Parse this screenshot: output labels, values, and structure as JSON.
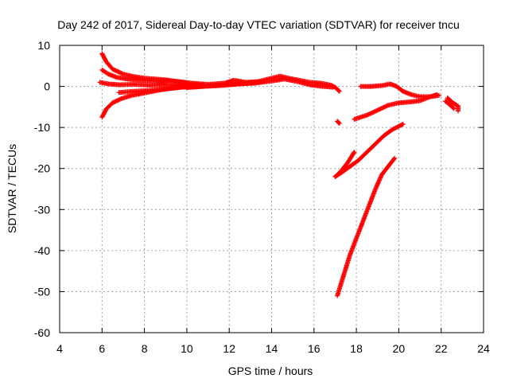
{
  "chart_data": {
    "type": "scatter",
    "title": "Day 242 of 2017, Sidereal Day-to-day VTEC variation (SDTVAR) for receiver tncu",
    "xlabel": "GPS time / hours",
    "ylabel": "SDTVAR / TECUs",
    "xlim": [
      4,
      24
    ],
    "ylim": [
      -60,
      10
    ],
    "xticks": [
      4,
      6,
      8,
      10,
      12,
      14,
      16,
      18,
      20,
      22,
      24
    ],
    "yticks": [
      10,
      0,
      -10,
      -20,
      -30,
      -40,
      -50,
      -60
    ],
    "xtick_labels": [
      "4",
      "6",
      "8",
      "10",
      "12",
      "14",
      "16",
      "18",
      "20",
      "22",
      "24"
    ],
    "ytick_labels": [
      "10",
      "0",
      "-10",
      "-20",
      "-30",
      "-40",
      "-50",
      "-60"
    ],
    "grid": true,
    "marker": "plus",
    "color": "#ff0000",
    "series": [
      {
        "values": [
          [
            6.0,
            8.0
          ],
          [
            6.2,
            6.0
          ],
          [
            6.5,
            4.2
          ],
          [
            7.0,
            3.0
          ],
          [
            7.5,
            2.4
          ],
          [
            8.0,
            2.0
          ],
          [
            8.5,
            1.8
          ],
          [
            9.0,
            1.6
          ],
          [
            9.5,
            1.2
          ],
          [
            10.0,
            0.8
          ]
        ]
      },
      {
        "values": [
          [
            6.0,
            4.0
          ],
          [
            6.3,
            3.0
          ],
          [
            6.7,
            2.2
          ],
          [
            7.2,
            1.8
          ],
          [
            7.8,
            1.5
          ],
          [
            8.5,
            1.3
          ],
          [
            9.0,
            1.0
          ]
        ]
      },
      {
        "values": [
          [
            5.9,
            1.0
          ],
          [
            6.3,
            0.6
          ],
          [
            6.8,
            0.4
          ],
          [
            7.5,
            0.5
          ],
          [
            8.2,
            0.3
          ],
          [
            9.0,
            0.4
          ],
          [
            9.8,
            0.3
          ],
          [
            10.5,
            0.5
          ]
        ]
      },
      {
        "values": [
          [
            6.0,
            -7.5
          ],
          [
            6.2,
            -5.5
          ],
          [
            6.5,
            -4.0
          ],
          [
            6.9,
            -3.0
          ],
          [
            7.4,
            -2.2
          ],
          [
            8.0,
            -1.6
          ],
          [
            8.6,
            -1.0
          ],
          [
            9.2,
            -0.5
          ],
          [
            10.0,
            0.0
          ],
          [
            10.8,
            0.4
          ]
        ]
      },
      {
        "values": [
          [
            6.8,
            -1.5
          ],
          [
            7.5,
            -1.2
          ],
          [
            8.2,
            -1.0
          ],
          [
            9.0,
            -0.6
          ],
          [
            9.8,
            -0.2
          ],
          [
            10.6,
            0.0
          ],
          [
            11.4,
            0.3
          ],
          [
            12.2,
            0.5
          ],
          [
            13.0,
            0.8
          ],
          [
            13.6,
            1.2
          ]
        ]
      },
      {
        "values": [
          [
            9.0,
            1.5
          ],
          [
            9.6,
            1.2
          ],
          [
            10.2,
            0.8
          ],
          [
            11.0,
            0.5
          ],
          [
            11.8,
            0.8
          ],
          [
            12.2,
            1.5
          ],
          [
            12.8,
            1.0
          ],
          [
            13.4,
            1.2
          ],
          [
            14.0,
            2.0
          ],
          [
            14.4,
            2.5
          ],
          [
            14.8,
            2.0
          ],
          [
            15.3,
            1.5
          ],
          [
            15.8,
            1.0
          ],
          [
            16.3,
            0.8
          ],
          [
            16.8,
            0.3
          ],
          [
            17.0,
            -0.2
          ],
          [
            17.2,
            -1.2
          ]
        ]
      },
      {
        "values": [
          [
            10.0,
            -0.3
          ],
          [
            10.8,
            0.0
          ],
          [
            11.6,
            0.2
          ],
          [
            12.4,
            0.6
          ],
          [
            13.2,
            0.8
          ],
          [
            14.0,
            1.3
          ],
          [
            14.6,
            1.8
          ],
          [
            15.2,
            1.2
          ],
          [
            15.8,
            0.4
          ],
          [
            16.4,
            0.0
          ],
          [
            16.9,
            -0.2
          ]
        ]
      },
      {
        "values": [
          [
            17.1,
            -8.5
          ],
          [
            17.2,
            -9.0
          ]
        ]
      },
      {
        "values": [
          [
            17.9,
            -8.0
          ],
          [
            18.5,
            -7.0
          ],
          [
            19.0,
            -5.8
          ],
          [
            19.5,
            -4.6
          ],
          [
            20.0,
            -4.0
          ],
          [
            20.5,
            -3.8
          ],
          [
            21.0,
            -3.5
          ],
          [
            21.5,
            -2.5
          ],
          [
            21.8,
            -2.0
          ]
        ]
      },
      {
        "values": [
          [
            18.2,
            0.0
          ],
          [
            18.7,
            0.0
          ],
          [
            19.2,
            0.2
          ],
          [
            19.6,
            0.6
          ],
          [
            19.9,
            0.0
          ],
          [
            20.2,
            -1.2
          ],
          [
            20.6,
            -2.0
          ],
          [
            21.0,
            -2.5
          ],
          [
            21.5,
            -2.5
          ],
          [
            21.9,
            -2.2
          ]
        ]
      },
      {
        "values": [
          [
            22.3,
            -2.8
          ],
          [
            22.5,
            -3.8
          ],
          [
            22.8,
            -4.8
          ],
          [
            22.8,
            -6.0
          ]
        ]
      },
      {
        "values": [
          [
            22.2,
            -3.6
          ],
          [
            22.4,
            -4.4
          ],
          [
            22.6,
            -5.4
          ]
        ]
      },
      {
        "values": [
          [
            17.0,
            -22.0
          ],
          [
            17.3,
            -21.0
          ],
          [
            17.7,
            -19.5
          ],
          [
            18.1,
            -18.0
          ],
          [
            18.5,
            -16.0
          ],
          [
            18.9,
            -14.0
          ],
          [
            19.3,
            -12.0
          ],
          [
            19.7,
            -10.5
          ],
          [
            20.2,
            -9.2
          ]
        ]
      },
      {
        "values": [
          [
            17.0,
            -22.0
          ],
          [
            17.3,
            -20.5
          ],
          [
            17.6,
            -18.5
          ],
          [
            17.9,
            -16.0
          ]
        ]
      },
      {
        "values": [
          [
            17.1,
            -51.0
          ],
          [
            17.4,
            -46.0
          ],
          [
            17.7,
            -41.0
          ],
          [
            18.0,
            -37.0
          ],
          [
            18.3,
            -33.0
          ],
          [
            18.6,
            -29.0
          ],
          [
            18.9,
            -25.0
          ],
          [
            19.2,
            -21.5
          ],
          [
            19.5,
            -19.5
          ],
          [
            19.8,
            -17.5
          ]
        ]
      }
    ]
  }
}
